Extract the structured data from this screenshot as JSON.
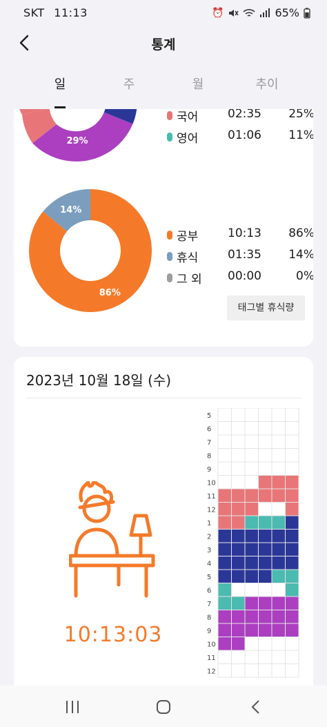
{
  "status": {
    "carrier": "SKT",
    "time": "11:13",
    "battery": "65%",
    "icons": [
      "alarm-icon",
      "mute-icon",
      "wifi-icon",
      "signal-icon",
      "battery-icon"
    ]
  },
  "appbar": {
    "title": "통계",
    "back_icon": "chevron-left-icon"
  },
  "tabs": [
    {
      "label": "일",
      "active": true
    },
    {
      "label": "주",
      "active": false
    },
    {
      "label": "월",
      "active": false
    },
    {
      "label": "추이",
      "active": false
    }
  ],
  "subject_chart": {
    "visible_slice_label": "29%",
    "legend": [
      {
        "label": "국어",
        "time": "02:35",
        "percent": "25%",
        "color": "#e87678"
      },
      {
        "label": "영어",
        "time": "01:06",
        "percent": "11%",
        "color": "#4bbab0"
      }
    ],
    "colors": {
      "korean": "#e87678",
      "purple": "#ab3fc0",
      "navy": "#2b3797"
    }
  },
  "chart_data": {
    "type": "pie",
    "categories": [
      "공부",
      "휴식",
      "그 외"
    ],
    "values": [
      86,
      14,
      0
    ],
    "colors": [
      "#f47a2a",
      "#7b9dbe",
      "#9e9e9e"
    ]
  },
  "activity": {
    "legend": [
      {
        "label": "공부",
        "time": "10:13",
        "percent": "86%",
        "color": "#f47a2a"
      },
      {
        "label": "휴식",
        "time": "01:35",
        "percent": "14%",
        "color": "#7b9dbe"
      },
      {
        "label": "그 외",
        "time": "00:00",
        "percent": "0%",
        "color": "#9e9e9e"
      }
    ],
    "slice_labels": [
      "86%",
      "14%"
    ],
    "tag_rest_button": "태그별 휴식량"
  },
  "daily": {
    "date": "2023년 10월 18일 (수)",
    "total_time": "10:13:03",
    "accent": "#f47a2a",
    "hours": [
      "5",
      "6",
      "7",
      "8",
      "9",
      "10",
      "11",
      "12",
      "1",
      "2",
      "3",
      "4",
      "5",
      "6",
      "7",
      "8",
      "9",
      "10",
      "11",
      "12"
    ],
    "palette": {
      "R": "#e87678",
      "T": "#4bbab0",
      "N": "#2b3797",
      "P": "#ab3fc0"
    },
    "rows": [
      "......",
      "......",
      "......",
      "......",
      "......",
      "...RRR",
      "RRRRRR",
      "RRR..R",
      "RRTTTN",
      "NNNNNN",
      "NNNNNN",
      "NNNNNN",
      "NNNNTT",
      "T....T",
      "TTPPPP",
      "PPPPPP",
      "PPPPPP",
      "PP....",
      "......",
      "......"
    ]
  },
  "navbar": {
    "icons": [
      "recent-apps-icon",
      "home-icon",
      "back-icon"
    ]
  }
}
